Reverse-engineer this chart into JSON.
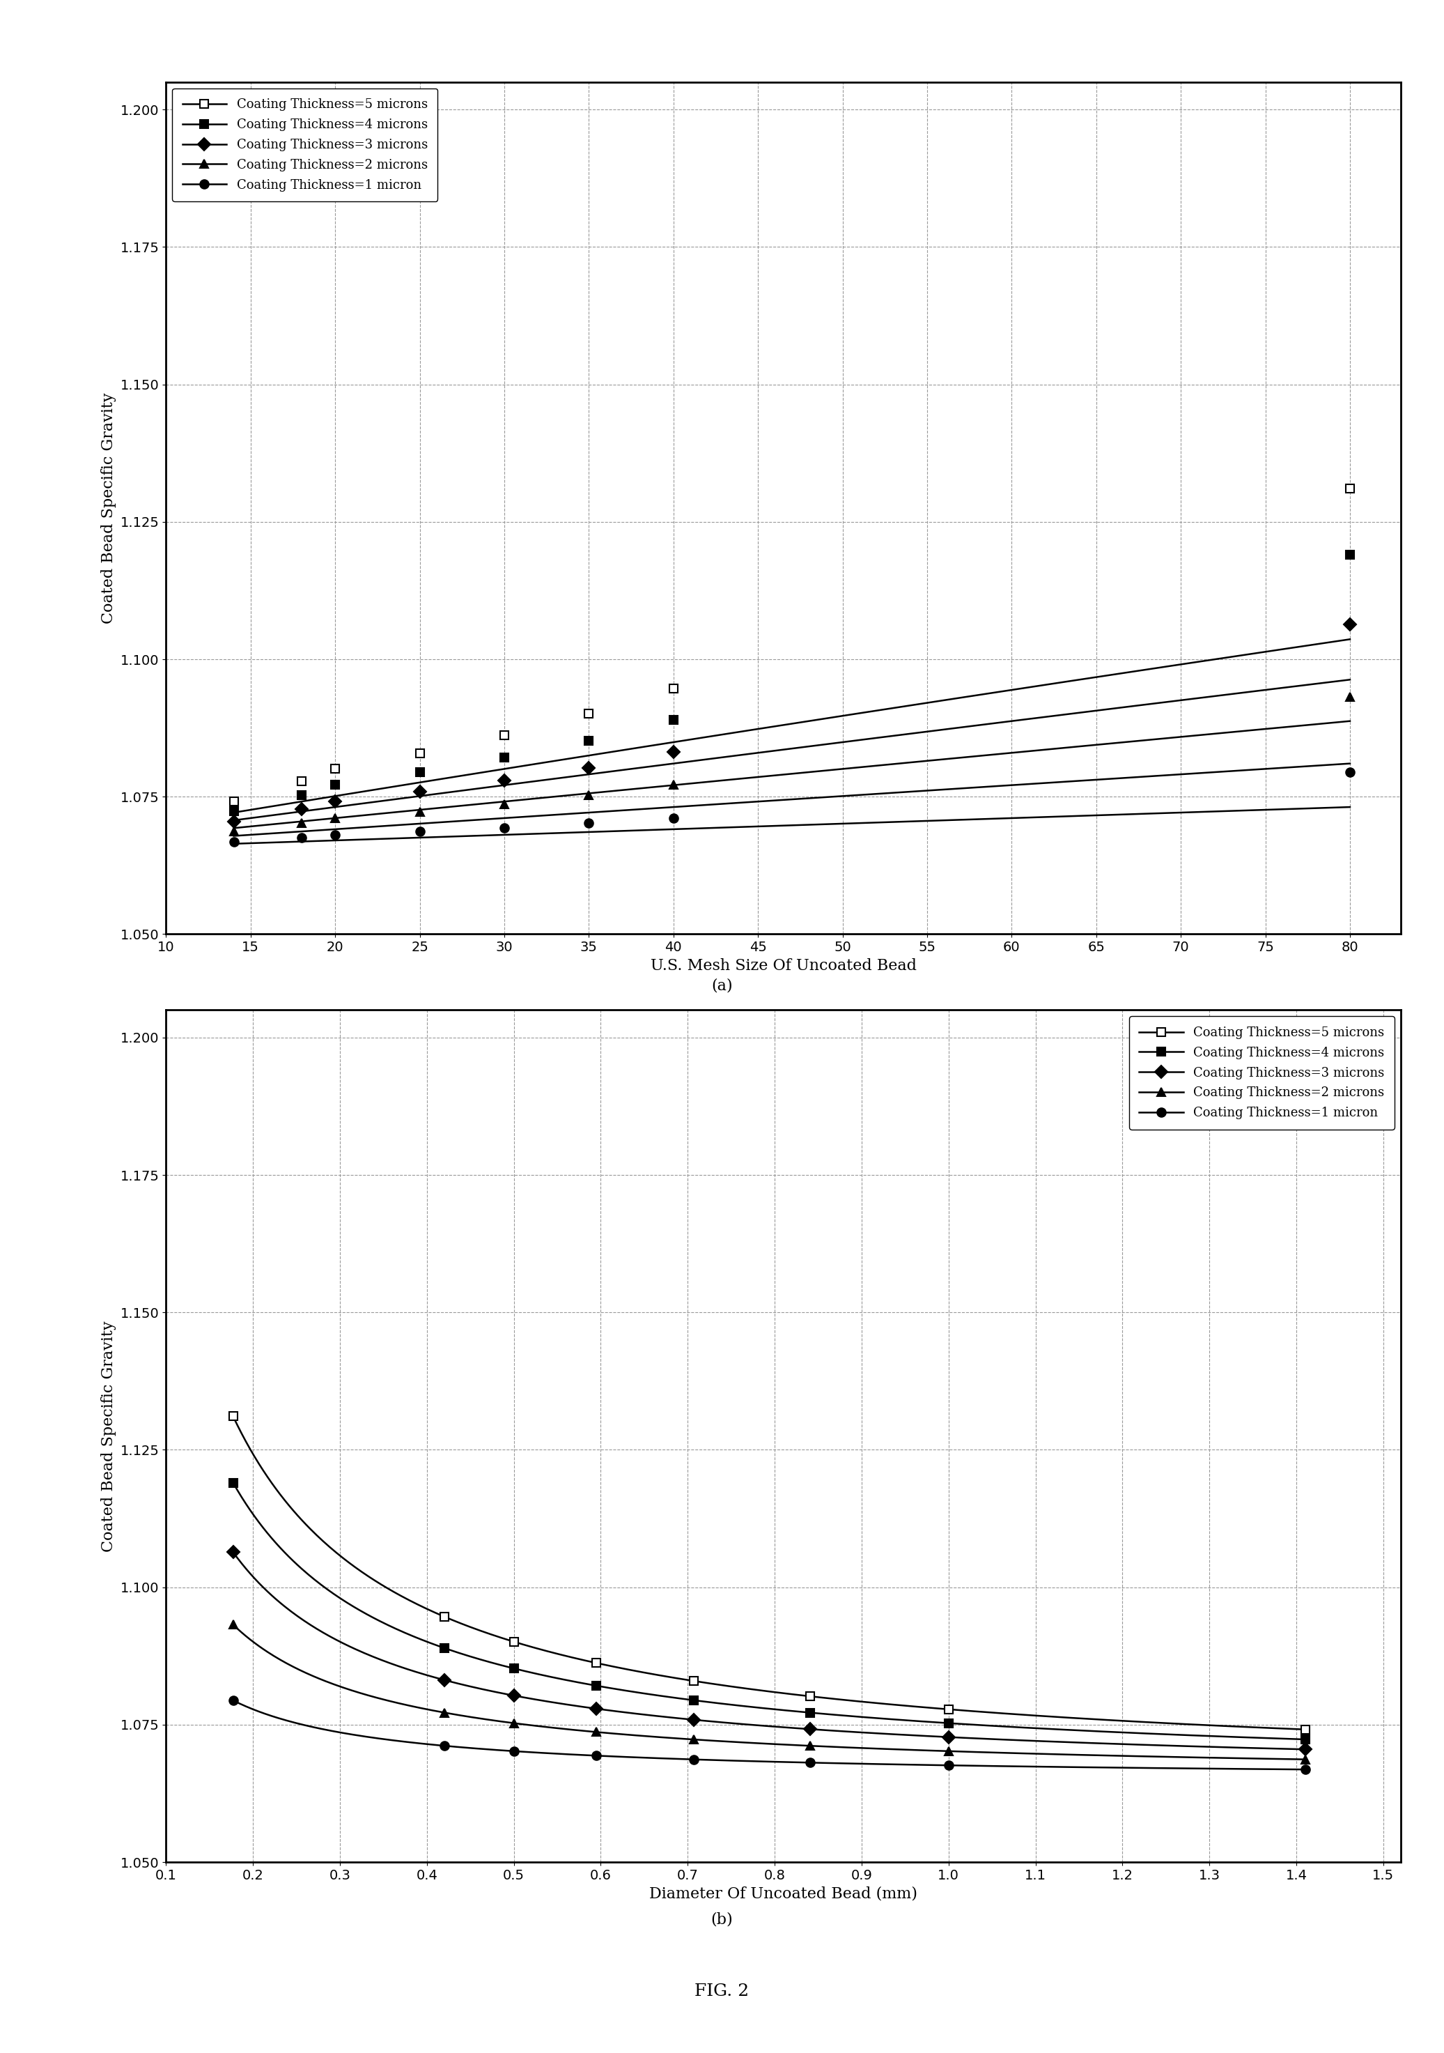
{
  "coating_thicknesses_microns": [
    5,
    4,
    3,
    2,
    1
  ],
  "bead_sg": 1.065,
  "coating_sg": 1.5,
  "legend_labels": [
    "Coating Thickness=5 microns",
    "Coating Thickness=4 microns",
    "Coating Thickness=3 microns",
    "Coating Thickness=2 microns",
    "Coating Thickness=1 micron"
  ],
  "chart_a": {
    "xlabel": "U.S. Mesh Size Of Uncoated Bead",
    "ylabel": "Coated Bead Specific Gravity",
    "xlim": [
      10,
      83
    ],
    "ylim": [
      1.05,
      1.205
    ],
    "xticks": [
      10,
      15,
      20,
      25,
      30,
      35,
      40,
      45,
      50,
      55,
      60,
      65,
      70,
      75,
      80
    ],
    "yticks": [
      1.05,
      1.075,
      1.1,
      1.125,
      1.15,
      1.175,
      1.2
    ],
    "mesh_sizes": [
      14,
      18,
      20,
      25,
      30,
      35,
      40,
      80
    ],
    "label": "(a)"
  },
  "chart_b": {
    "xlabel": "Diameter Of Uncoated Bead (mm)",
    "ylabel": "Coated Bead Specific Gravity",
    "xlim": [
      0.1,
      1.52
    ],
    "ylim": [
      1.05,
      1.205
    ],
    "xticks": [
      0.1,
      0.2,
      0.3,
      0.4,
      0.5,
      0.6,
      0.7,
      0.8,
      0.9,
      1.0,
      1.1,
      1.2,
      1.3,
      1.4,
      1.5
    ],
    "xtick_labels": [
      "0.1",
      "0.2",
      "0.3",
      "0.4",
      "0.5",
      "0.6",
      "0.7",
      "0.8",
      "0.9",
      "1.0",
      "1.1",
      "1.2",
      "1.3",
      "1.4",
      "1.5"
    ],
    "yticks": [
      1.05,
      1.075,
      1.1,
      1.125,
      1.15,
      1.175,
      1.2
    ],
    "label": "(b)"
  },
  "fig_label": "FIG. 2",
  "line_color": "#000000",
  "grid_color": "#999999",
  "grid_style": "--",
  "font_size_axis_label": 16,
  "font_size_tick": 14,
  "font_size_legend": 13,
  "font_size_caption": 16,
  "marker_styles": [
    "s",
    "s",
    "D",
    "^",
    "o"
  ],
  "marker_fills": [
    "white",
    "black",
    "black",
    "black",
    "black"
  ],
  "mesh_to_diameter": {
    "14": 1.41,
    "18": 1.0,
    "20": 0.841,
    "25": 0.707,
    "30": 0.595,
    "35": 0.5,
    "40": 0.42,
    "80": 0.177
  }
}
